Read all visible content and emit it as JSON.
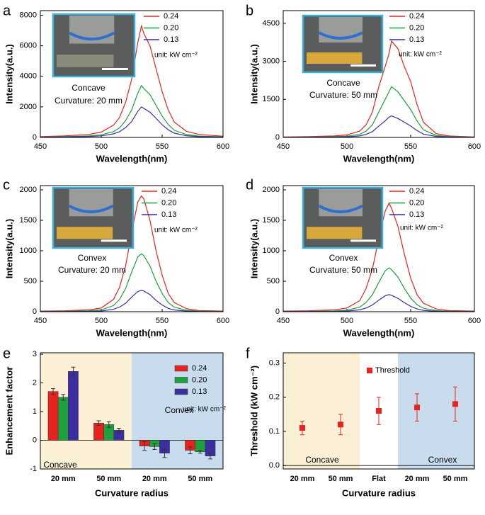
{
  "chart_data": [
    {
      "type": "line",
      "panel_label": "a",
      "xlabel": "Wavelength(nm)",
      "ylabel": "Intensity(a.u.)",
      "x": [
        450,
        470,
        490,
        500,
        510,
        515,
        520,
        525,
        530,
        533,
        535,
        540,
        545,
        550,
        555,
        560,
        570,
        580,
        600
      ],
      "xlim": [
        450,
        600
      ],
      "xticks": [
        450,
        500,
        550,
        600
      ],
      "ylim": [
        0,
        8300
      ],
      "yticks": [
        0,
        2000,
        4000,
        6000,
        8000
      ],
      "series": [
        {
          "name": "0.24",
          "color": "#e8231f",
          "values": [
            50,
            100,
            200,
            350,
            800,
            1300,
            2300,
            3800,
            6200,
            7300,
            6800,
            6000,
            4500,
            3000,
            1800,
            1000,
            400,
            200,
            80
          ]
        },
        {
          "name": "0.20",
          "color": "#1ea03c",
          "values": [
            20,
            50,
            100,
            170,
            380,
            620,
            1100,
            1800,
            2900,
            3400,
            3200,
            2800,
            2100,
            1400,
            850,
            470,
            190,
            90,
            40
          ]
        },
        {
          "name": "0.13",
          "color": "#3a2ea0",
          "values": [
            10,
            30,
            60,
            100,
            230,
            370,
            650,
            1050,
            1700,
            2000,
            1900,
            1650,
            1250,
            830,
            500,
            280,
            110,
            50,
            20
          ]
        }
      ],
      "annotations": [
        "Concave",
        "Curvature:  20 mm"
      ],
      "unit": "unit: kW cm⁻²"
    },
    {
      "type": "line",
      "panel_label": "b",
      "xlabel": "Wavelength(nm)",
      "ylabel": "Intensity(a.u.)",
      "x": [
        450,
        470,
        490,
        500,
        510,
        515,
        520,
        525,
        530,
        533,
        535,
        540,
        545,
        550,
        555,
        560,
        570,
        580,
        600
      ],
      "xlim": [
        450,
        600
      ],
      "xticks": [
        450,
        500,
        550,
        600
      ],
      "ylim": [
        0,
        5000
      ],
      "yticks": [
        0,
        1500,
        3000,
        4500
      ],
      "series": [
        {
          "name": "0.24",
          "color": "#e8231f",
          "values": [
            20,
            30,
            60,
            100,
            250,
            500,
            1000,
            2000,
            2800,
            3300,
            3800,
            3500,
            2800,
            2200,
            1300,
            600,
            150,
            60,
            20
          ]
        },
        {
          "name": "0.20",
          "color": "#1ea03c",
          "values": [
            10,
            15,
            30,
            50,
            120,
            250,
            500,
            1000,
            1500,
            1800,
            2000,
            1800,
            1450,
            1100,
            650,
            300,
            80,
            30,
            10
          ]
        },
        {
          "name": "0.13",
          "color": "#3a2ea0",
          "values": [
            5,
            8,
            15,
            25,
            60,
            120,
            230,
            450,
            650,
            800,
            850,
            750,
            600,
            450,
            270,
            130,
            40,
            15,
            5
          ]
        }
      ],
      "annotations": [
        "Concave",
        "Curvature:  50 mm"
      ],
      "unit": "unit: kW cm⁻²"
    },
    {
      "type": "line",
      "panel_label": "c",
      "xlabel": "Wavelength(nm)",
      "ylabel": "Intensity(a.u.)",
      "x": [
        450,
        470,
        490,
        500,
        510,
        515,
        520,
        525,
        530,
        533,
        535,
        540,
        545,
        550,
        555,
        560,
        570,
        580,
        600
      ],
      "xlim": [
        450,
        600
      ],
      "xticks": [
        450,
        500,
        550,
        600
      ],
      "ylim": [
        0,
        2070
      ],
      "yticks": [
        0,
        500,
        1000,
        1500,
        2000
      ],
      "series": [
        {
          "name": "0.24",
          "color": "#e8231f",
          "values": [
            10,
            15,
            30,
            60,
            200,
            400,
            750,
            1300,
            1800,
            1900,
            1850,
            1500,
            1000,
            600,
            300,
            150,
            50,
            20,
            10
          ]
        },
        {
          "name": "0.20",
          "color": "#1ea03c",
          "values": [
            5,
            8,
            15,
            30,
            100,
            200,
            380,
            650,
            900,
            950,
            920,
            750,
            500,
            300,
            150,
            75,
            25,
            10,
            5
          ]
        },
        {
          "name": "0.13",
          "color": "#3a2ea0",
          "values": [
            2,
            3,
            6,
            12,
            40,
            75,
            140,
            240,
            330,
            350,
            340,
            280,
            185,
            110,
            55,
            28,
            10,
            4,
            2
          ]
        }
      ],
      "annotations": [
        "Convex",
        "Curvature:  20 mm"
      ],
      "unit": "unit: kW cm⁻²"
    },
    {
      "type": "line",
      "panel_label": "d",
      "xlabel": "Wavelength(nm)",
      "ylabel": "Intensity(a.u.)",
      "x": [
        450,
        470,
        490,
        500,
        510,
        515,
        520,
        525,
        530,
        533,
        535,
        540,
        545,
        550,
        555,
        560,
        570,
        580,
        600
      ],
      "xlim": [
        450,
        600
      ],
      "xticks": [
        450,
        500,
        550,
        600
      ],
      "ylim": [
        0,
        2070
      ],
      "yticks": [
        0,
        500,
        1000,
        1500,
        2000
      ],
      "series": [
        {
          "name": "0.24",
          "color": "#e8231f",
          "values": [
            10,
            15,
            30,
            60,
            180,
            380,
            700,
            1200,
            1650,
            1780,
            1700,
            1400,
            950,
            550,
            280,
            140,
            45,
            18,
            10
          ]
        },
        {
          "name": "0.20",
          "color": "#1ea03c",
          "values": [
            4,
            6,
            12,
            25,
            75,
            150,
            280,
            480,
            670,
            720,
            690,
            570,
            385,
            225,
            115,
            57,
            18,
            7,
            4
          ]
        },
        {
          "name": "0.13",
          "color": "#3a2ea0",
          "values": [
            2,
            3,
            5,
            10,
            30,
            60,
            110,
            190,
            260,
            280,
            270,
            220,
            150,
            88,
            45,
            22,
            7,
            3,
            1
          ]
        }
      ],
      "annotations": [
        "Convex",
        "Curvature:  50 mm"
      ],
      "unit": "unit: kW cm⁻²"
    },
    {
      "type": "bar",
      "panel_label": "e",
      "xlabel": "Curvature radius",
      "ylabel": "Enhancement factor",
      "categories": [
        "20 mm",
        "50 mm",
        "20 mm",
        "50 mm"
      ],
      "ylim": [
        -1,
        3.05
      ],
      "yticks": [
        -1,
        0,
        1,
        2,
        3
      ],
      "series": [
        {
          "name": "0.24",
          "color": "#e8231f",
          "values": [
            1.7,
            0.6,
            -0.2,
            -0.35
          ],
          "errors": [
            0.1,
            0.08,
            0.15,
            0.12
          ]
        },
        {
          "name": "0.20",
          "color": "#1ea03c",
          "values": [
            1.5,
            0.55,
            -0.22,
            -0.4
          ],
          "errors": [
            0.1,
            0.1,
            0.1,
            0.05
          ]
        },
        {
          "name": "0.13",
          "color": "#3a2ea0",
          "values": [
            2.4,
            0.35,
            -0.45,
            -0.55
          ],
          "errors": [
            0.15,
            0.07,
            0.15,
            0.1
          ]
        }
      ],
      "annotations": [
        "Concave",
        "Convex"
      ],
      "unit": "unit: kW cm⁻²"
    },
    {
      "type": "scatter",
      "panel_label": "f",
      "xlabel": "Curvature radius",
      "ylabel": "Threshold (kW cm⁻²)",
      "categories": [
        "20 mm",
        "50 mm",
        "Flat",
        "20 mm",
        "50 mm"
      ],
      "ylim": [
        -0.01,
        0.33
      ],
      "yticks": [
        {
          "value": 0,
          "label": "0.0"
        },
        0.1,
        0.2,
        0.3
      ],
      "series": [
        {
          "name": "Threshold",
          "color": "#e8231f",
          "values": [
            0.11,
            0.12,
            0.16,
            0.17,
            0.18
          ],
          "errors": [
            0.02,
            0.03,
            0.04,
            0.04,
            0.05
          ]
        }
      ],
      "annotations": [
        "Concave",
        "Convex"
      ]
    }
  ]
}
